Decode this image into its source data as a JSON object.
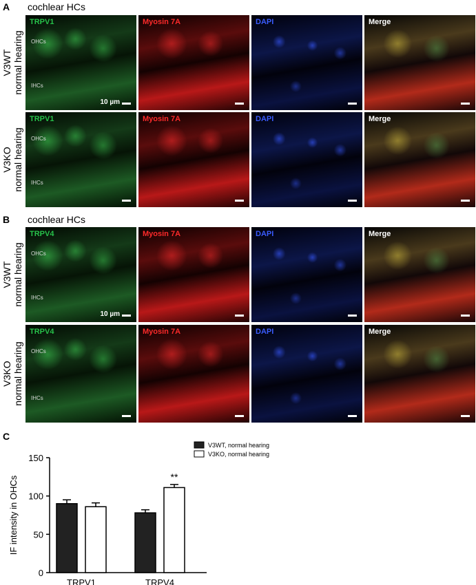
{
  "panel_a": {
    "letter": "A",
    "title": "cochlear HCs",
    "rows": [
      {
        "line1": "V3WT",
        "line2": "normal hearing",
        "channels": [
          "TRPV1",
          "Myosin 7A",
          "DAPI",
          "Merge"
        ],
        "regions": [
          "OHCs",
          "IHCs"
        ],
        "scale": "10 µm"
      },
      {
        "line1": "V3KO",
        "line2": "normal hearing",
        "channels": [
          "TRPV1",
          "Myosin 7A",
          "DAPI",
          "Merge"
        ],
        "regions": [
          "OHCs",
          "IHCs"
        ],
        "scale": ""
      }
    ]
  },
  "panel_b": {
    "letter": "B",
    "title": "cochlear HCs",
    "rows": [
      {
        "line1": "V3WT",
        "line2": "normal hearing",
        "channels": [
          "TRPV4",
          "Myosin 7A",
          "DAPI",
          "Merge"
        ],
        "regions": [
          "OHCs",
          "IHCs"
        ],
        "scale": "10 µm"
      },
      {
        "line1": "V3KO",
        "line2": "normal hearing",
        "channels": [
          "TRPV4",
          "Myosin 7A",
          "DAPI",
          "Merge"
        ],
        "regions": [
          "OHCs",
          "IHCs"
        ],
        "scale": ""
      }
    ]
  },
  "colors": {
    "green_label": "#27c24a",
    "red_label": "#ff2a2a",
    "blue_label": "#3a5cff",
    "merge_label": "#ffffff"
  },
  "panel_c": {
    "letter": "C",
    "chart_data": {
      "type": "bar",
      "categories": [
        "TRPV1",
        "TRPV4"
      ],
      "series": [
        {
          "name": "V3WT, normal hearing",
          "values": [
            90,
            78
          ],
          "errors": [
            5,
            4
          ],
          "fill": "#222222"
        },
        {
          "name": "V3KO, normal hearing",
          "values": [
            86,
            111
          ],
          "errors": [
            5,
            4
          ],
          "fill": "#ffffff"
        }
      ],
      "ylabel": "IF intensity in OHCs",
      "ylim": [
        0,
        150
      ],
      "yticks": [
        "0",
        "50",
        "100",
        "150"
      ],
      "annotation": "**",
      "legend": "top-right"
    }
  }
}
